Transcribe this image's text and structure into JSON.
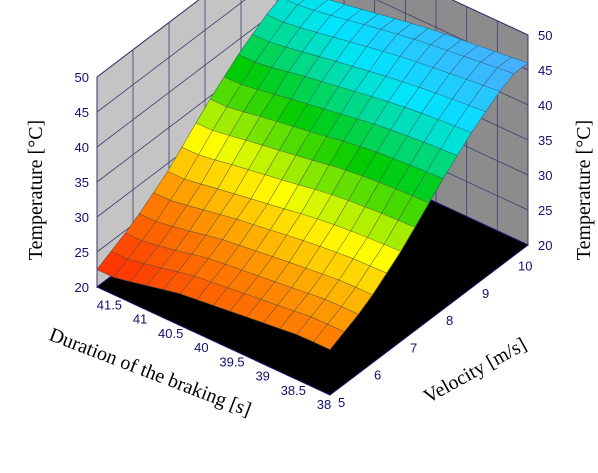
{
  "chart_data": {
    "type": "surface3d",
    "title": "",
    "xlabel": "Duration of the braking [s]",
    "ylabel": "Velocity [m/s]",
    "zlabel_left": "Temperature [°C]",
    "zlabel_right": "Temperature [°C]",
    "x_ticks": [
      "38",
      "38.5",
      "39",
      "39.5",
      "40",
      "40.5",
      "41",
      "41.5"
    ],
    "y_ticks": [
      "5",
      "6",
      "7",
      "8",
      "9",
      "10"
    ],
    "z_ticks_left": [
      "20",
      "25",
      "30",
      "35",
      "40",
      "45",
      "50"
    ],
    "z_ticks_right": [
      "20",
      "25",
      "30",
      "35",
      "40",
      "45",
      "50"
    ],
    "xlim": [
      38,
      41.8
    ],
    "ylim": [
      5,
      10.5
    ],
    "zlim": [
      20,
      50
    ],
    "surface": {
      "duration": [
        38,
        38.5,
        39,
        39.5,
        40,
        40.5,
        41,
        41.5
      ],
      "velocity": [
        5,
        6,
        7,
        8,
        9,
        10
      ],
      "temperature": [
        [
          26.5,
          29.0,
          33.0,
          38.0,
          42.5,
          46.0
        ],
        [
          26.5,
          29.0,
          32.8,
          37.8,
          42.2,
          45.5
        ],
        [
          26.0,
          28.5,
          32.5,
          37.5,
          41.8,
          45.0
        ],
        [
          25.5,
          28.0,
          32.0,
          37.0,
          41.2,
          44.5
        ],
        [
          25.0,
          27.5,
          31.2,
          36.2,
          40.5,
          43.8
        ],
        [
          24.5,
          27.0,
          30.5,
          35.5,
          39.8,
          43.0
        ],
        [
          23.5,
          26.0,
          29.8,
          34.8,
          39.0,
          42.2
        ],
        [
          22.5,
          25.2,
          29.0,
          34.0,
          38.2,
          41.5
        ]
      ]
    },
    "colormap": [
      "#ff2400",
      "#ff8000",
      "#ffff00",
      "#00cc00",
      "#00e5ff",
      "#5aa0ff"
    ],
    "grid": true
  }
}
